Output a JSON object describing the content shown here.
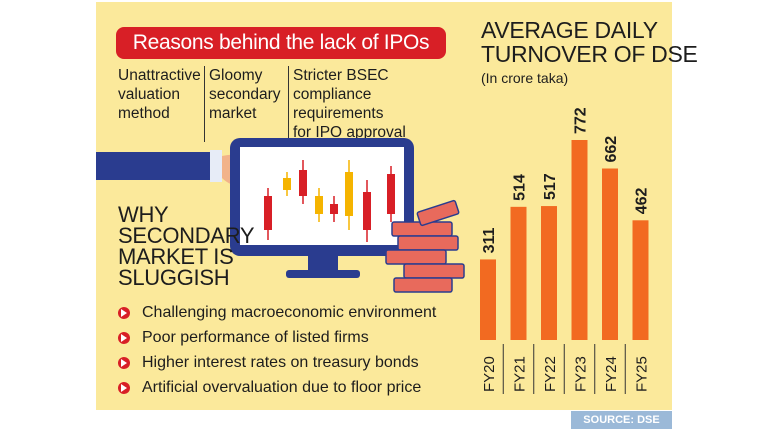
{
  "colors": {
    "panel": "#fbe99b",
    "accent": "#d81f26",
    "bar": "#f26a21",
    "text": "#1d1d1d",
    "source_bg": "#9bb9d8"
  },
  "banner": {
    "title": "Reasons behind the lack of IPOs"
  },
  "reasons": [
    "Unattractive\nvaluation\nmethod",
    "Gloomy\nsecondary\nmarket",
    "Stricter BSEC\ncompliance requirements\nfor IPO approval"
  ],
  "why": {
    "heading": "WHY\nSECONDARY\nMARKET IS\nSLUGGISH"
  },
  "bullets": [
    {
      "text": "Challenging macroeconomic environment",
      "icon": "arrow-circle-icon"
    },
    {
      "text": "Poor performance of listed firms",
      "icon": "arrow-circle-icon"
    },
    {
      "text": "Higher interest rates on treasury bonds",
      "icon": "arrow-circle-icon"
    },
    {
      "text": "Artificial overvaluation due to floor price",
      "icon": "arrow-circle-icon"
    }
  ],
  "chart_data": {
    "type": "bar",
    "title": "AVERAGE DAILY\nTURNOVER OF DSE",
    "subtitle": "(In crore taka)",
    "categories": [
      "FY20",
      "FY21",
      "FY22",
      "FY23",
      "FY24",
      "FY25"
    ],
    "values": [
      311,
      514,
      517,
      772,
      662,
      462
    ],
    "ylim": [
      0,
      772
    ],
    "grid": false,
    "legend": "none"
  },
  "source": {
    "label": "SOURCE: DSE"
  }
}
